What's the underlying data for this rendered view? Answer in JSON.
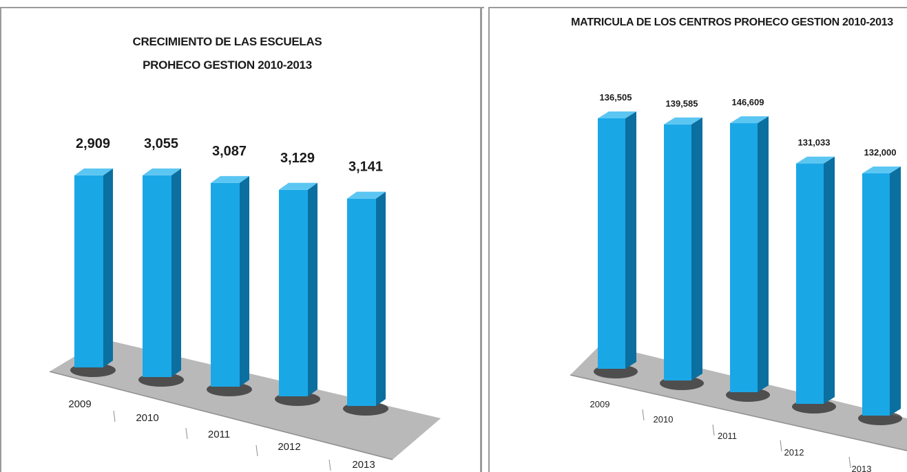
{
  "colors": {
    "bar_front": "#1aa7e6",
    "bar_side": "#0b6fa0",
    "bar_top": "#5cc6f2",
    "floor": "#b9b9b9",
    "floor_edge": "#8e8e8e",
    "shadow": "#2b2b2b"
  },
  "chart_data": [
    {
      "type": "bar",
      "title": "CRECIMIENTO DE LAS ESCUELAS PROHECO GESTION 2010-2013",
      "title_lines": [
        "CRECIMIENTO DE LAS ESCUELAS",
        "PROHECO GESTION 2010-2013"
      ],
      "categories": [
        "2009",
        "2010",
        "2011",
        "2012",
        "2013"
      ],
      "values": [
        2909,
        3055,
        3087,
        3129,
        3141
      ],
      "labels": [
        "2,909",
        "3,055",
        "3,087",
        "3,129",
        "3,141"
      ],
      "ylim": [
        0,
        3200
      ],
      "three_d": true
    },
    {
      "type": "bar",
      "title": "MATRICULA DE LOS CENTROS  PROHECO GESTION 2010-2013",
      "title_lines": [
        "MATRICULA DE LOS CENTROS  PROHECO GESTION 2010-2013"
      ],
      "categories": [
        "2009",
        "2010",
        "2011",
        "2012",
        "2013"
      ],
      "values": [
        136505,
        139585,
        146609,
        131033,
        132000
      ],
      "labels": [
        "136,505",
        "139,585",
        "146,609",
        "131,033",
        "132,000"
      ],
      "ylim": [
        0,
        150000
      ],
      "three_d": true
    }
  ]
}
